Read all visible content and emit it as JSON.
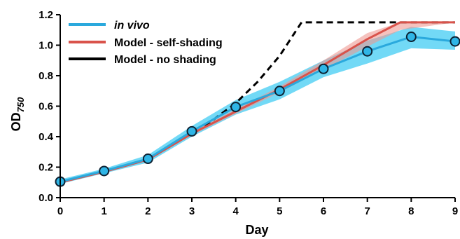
{
  "chart_data": {
    "type": "line",
    "xlabel": "Day",
    "ylabel": {
      "main": "OD",
      "subscript": "750"
    },
    "xlim": [
      0,
      9
    ],
    "ylim": [
      0,
      1.2
    ],
    "x_ticks": [
      "0",
      "1",
      "2",
      "3",
      "4",
      "5",
      "6",
      "7",
      "8",
      "9"
    ],
    "y_ticks": [
      "0.0",
      "0.2",
      "0.4",
      "0.6",
      "0.8",
      "1.0",
      "1.2"
    ],
    "grid": false,
    "legend_placement": "top-left",
    "series": [
      {
        "name": "in vivo",
        "color": "#2aa9dd",
        "band_color": "#59d2f5",
        "marker_fill": "#2fb5e6",
        "marker": "circle",
        "style": "solid",
        "x": [
          0,
          1,
          2,
          3,
          4,
          5,
          6,
          7,
          8,
          9
        ],
        "y": [
          0.105,
          0.175,
          0.255,
          0.435,
          0.595,
          0.7,
          0.845,
          0.96,
          1.055,
          1.025
        ],
        "y_lower": [
          0.09,
          0.16,
          0.23,
          0.4,
          0.545,
          0.645,
          0.79,
          0.88,
          0.98,
          0.97
        ],
        "y_upper": [
          0.12,
          0.19,
          0.28,
          0.47,
          0.64,
          0.76,
          0.9,
          1.03,
          1.12,
          1.09
        ]
      },
      {
        "name": "Model - self-shading",
        "color": "#d9534b",
        "band_color": "#ef9a93",
        "style": "solid",
        "x": [
          0,
          1,
          2,
          3,
          4,
          5,
          6,
          7,
          7.75,
          9
        ],
        "y": [
          0.1,
          0.17,
          0.25,
          0.42,
          0.565,
          0.71,
          0.87,
          1.04,
          1.15,
          1.15
        ],
        "y_lower": [
          0.1,
          0.17,
          0.25,
          0.41,
          0.55,
          0.69,
          0.84,
          0.99,
          1.1,
          1.15
        ],
        "y_upper": [
          0.1,
          0.17,
          0.26,
          0.43,
          0.58,
          0.73,
          0.9,
          1.08,
          1.15,
          1.15
        ]
      },
      {
        "name": "Model - no shading",
        "color": "#000000",
        "style": "dashed",
        "x": [
          3.3,
          4,
          4.5,
          5,
          5.5,
          9
        ],
        "y": [
          0.47,
          0.62,
          0.76,
          0.93,
          1.15,
          1.15
        ]
      }
    ]
  }
}
